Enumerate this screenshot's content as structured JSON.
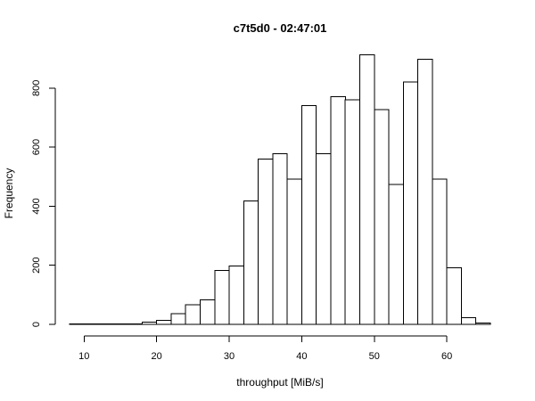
{
  "chart_data": {
    "type": "bar",
    "title": "c7t5d0 - 02:47:01",
    "xlabel": "throughput [MiB/s]",
    "ylabel": "Frequency",
    "bin_width": 2,
    "bin_edges": [
      8,
      10,
      12,
      14,
      16,
      18,
      20,
      22,
      24,
      26,
      28,
      30,
      32,
      34,
      36,
      38,
      40,
      42,
      44,
      46,
      48,
      50,
      52,
      54,
      56,
      58,
      60,
      62,
      64,
      66
    ],
    "values": [
      1,
      1,
      1,
      1,
      2,
      7,
      14,
      36,
      67,
      83,
      182,
      198,
      418,
      560,
      578,
      491,
      740,
      578,
      770,
      760,
      912,
      727,
      473,
      820,
      898,
      491,
      191,
      23,
      4
    ],
    "xlim": [
      8,
      66
    ],
    "ylim": [
      0,
      920
    ],
    "x_ticks": [
      10,
      20,
      30,
      40,
      50,
      60
    ],
    "y_ticks": [
      0,
      200,
      400,
      600,
      800
    ],
    "grid": false,
    "colors": {
      "bar_fill": "#ffffff",
      "bar_stroke": "#000000"
    }
  }
}
